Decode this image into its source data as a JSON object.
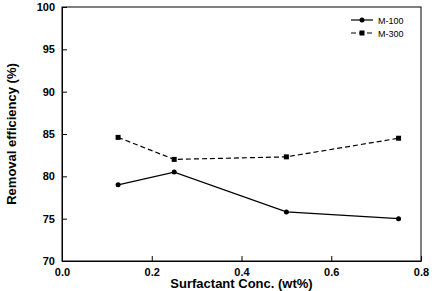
{
  "chart_data": {
    "type": "line",
    "x_label": "Surfactant Conc. (wt%)",
    "y_label": "Removal efficiency (%)",
    "x": [
      0.125,
      0.25,
      0.5,
      0.75
    ],
    "series": [
      {
        "name": "M-100",
        "color": "#000000",
        "marker": "circle",
        "line_style": "solid",
        "values": [
          79.0,
          80.5,
          75.8,
          75.0
        ]
      },
      {
        "name": "M-300",
        "color": "#000000",
        "marker": "square",
        "line_style": "dashed",
        "values": [
          84.6,
          82.0,
          82.3,
          84.5
        ]
      }
    ],
    "xlim": [
      0,
      0.8
    ],
    "xticks": [
      {
        "value": 0,
        "label": "0.0"
      },
      0.2,
      0.4,
      0.6,
      0.8
    ],
    "ylim": [
      70,
      100
    ],
    "yticks": [
      70,
      75,
      80,
      85,
      90,
      95,
      100
    ],
    "grid": false,
    "legend": "top-right"
  }
}
